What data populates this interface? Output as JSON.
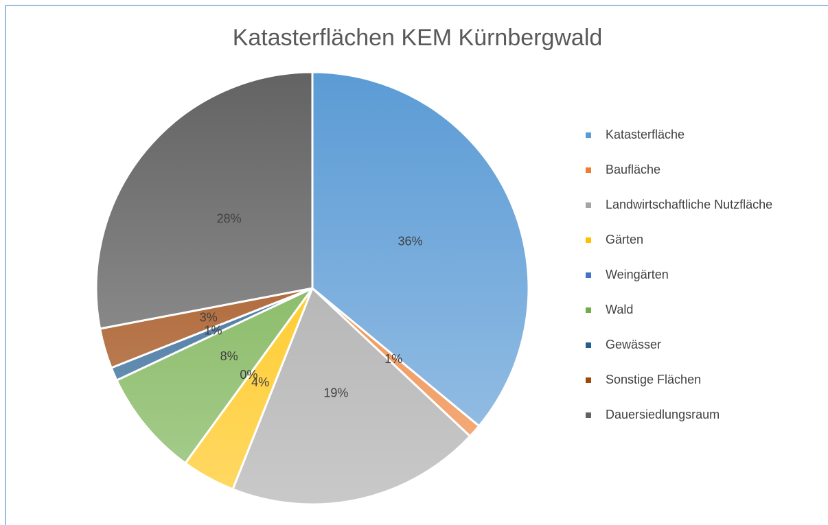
{
  "chart_data": {
    "type": "pie",
    "title": "Katasterflächen KEM Kürnbergwald",
    "categories": [
      "Katasterfläche",
      "Baufläche",
      "Landwirtschaftliche Nutzfläche",
      "Gärten",
      "Weingärten",
      "Wald",
      "Gewässer",
      "Sonstige Flächen",
      "Dauersiedlungsraum"
    ],
    "values": [
      36,
      1,
      19,
      4,
      0,
      8,
      1,
      3,
      28
    ],
    "value_labels": [
      "36%",
      "1%",
      "19%",
      "4%",
      "0%",
      "8%",
      "1%",
      "3%",
      "28%"
    ],
    "colors": [
      "#5b9bd5",
      "#ed7d31",
      "#a5a5a5",
      "#ffc000",
      "#4472c4",
      "#70ad47",
      "#255e91",
      "#9e480e",
      "#636363"
    ],
    "legend": "right"
  }
}
